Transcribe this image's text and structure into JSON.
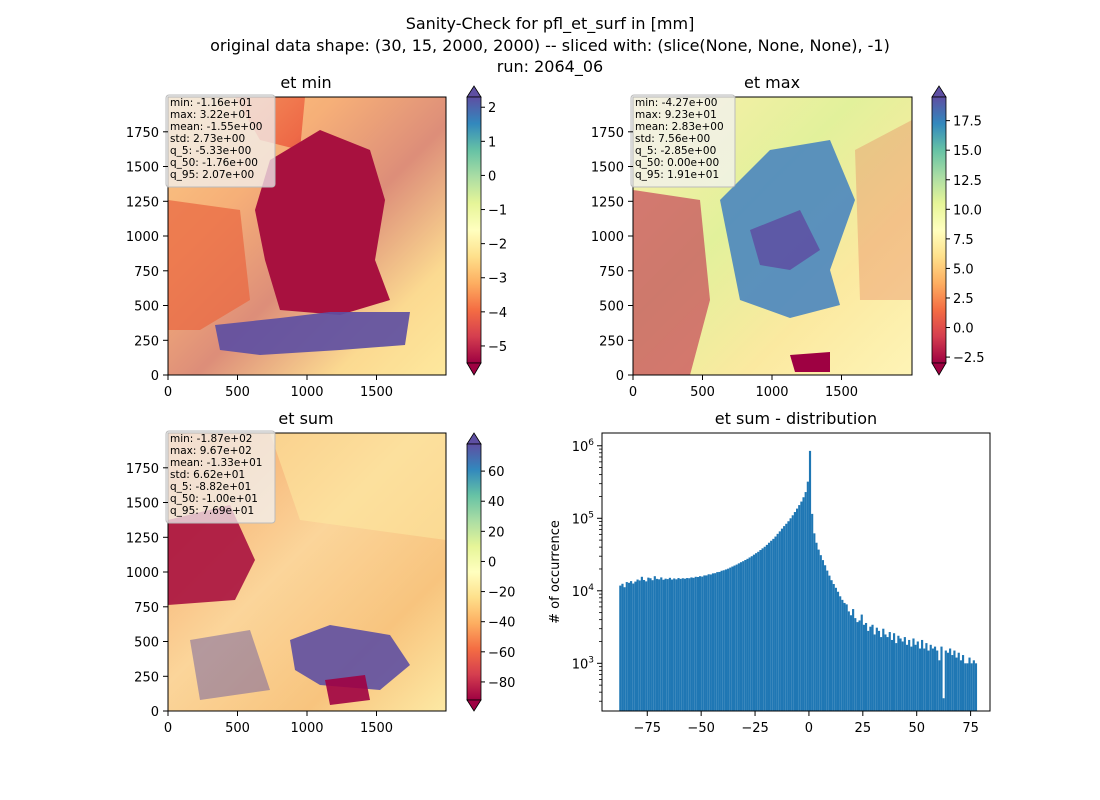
{
  "figure": {
    "title_lines": [
      "Sanity-Check for pfl_et_surf in [mm]",
      "original data shape: (30, 15, 2000, 2000) -- sliced with: (slice(None, None, None), -1)",
      "run: 2064_06"
    ]
  },
  "colors": {
    "spectral": [
      "#9e0142",
      "#d53e4f",
      "#f46d43",
      "#fdae61",
      "#fee08b",
      "#ffffbf",
      "#e6f598",
      "#abdda4",
      "#66c2a5",
      "#3288bd",
      "#5e4fa2"
    ],
    "hist_bar": "#1f77b4"
  },
  "chart_data": [
    {
      "type": "heatmap",
      "title": "et min",
      "x_ticks": [
        "0",
        "500",
        "1000",
        "1500"
      ],
      "y_ticks": [
        "0",
        "250",
        "500",
        "750",
        "1000",
        "1250",
        "1500",
        "1750"
      ],
      "colorbar": {
        "ticks": [
          "2",
          "1",
          "0",
          "−1",
          "−2",
          "−3",
          "−4",
          "−5"
        ],
        "vmin": -5.5,
        "vmax": 2.3,
        "extend": "both"
      },
      "stats": [
        "min: -1.16e+01",
        "max: 3.22e+01",
        "mean: -1.55e+00",
        "std: 2.73e+00",
        "q_5: -5.33e+00",
        "q_50: -1.76e+00",
        "q_95: 2.07e+00"
      ]
    },
    {
      "type": "heatmap",
      "title": "et max",
      "x_ticks": [
        "0",
        "500",
        "1000",
        "1500"
      ],
      "y_ticks": [
        "0",
        "250",
        "500",
        "750",
        "1000",
        "1250",
        "1500",
        "1750"
      ],
      "colorbar": {
        "ticks": [
          "17.5",
          "15.0",
          "12.5",
          "10.0",
          "7.5",
          "5.0",
          "2.5",
          "0.0",
          "−2.5"
        ],
        "vmin": -3.0,
        "vmax": 19.5,
        "extend": "both"
      },
      "stats": [
        "min: -4.27e+00",
        "max: 9.23e+01",
        "mean: 2.83e+00",
        "std: 7.56e+00",
        "q_5: -2.85e+00",
        "q_50: 0.00e+00",
        "q_95: 1.91e+01"
      ]
    },
    {
      "type": "heatmap",
      "title": "et sum",
      "x_ticks": [
        "0",
        "500",
        "1000",
        "1500"
      ],
      "y_ticks": [
        "0",
        "250",
        "500",
        "750",
        "1000",
        "1250",
        "1500",
        "1750"
      ],
      "colorbar": {
        "ticks": [
          "60",
          "40",
          "20",
          "0",
          "−20",
          "−40",
          "−60",
          "−80"
        ],
        "vmin": -92,
        "vmax": 78,
        "extend": "both"
      },
      "stats": [
        "min: -1.87e+02",
        "max: 9.67e+02",
        "mean: -1.33e+01",
        "std: 6.62e+01",
        "q_5: -8.82e+01",
        "q_50: -1.00e+01",
        "q_95: 7.69e+01"
      ]
    },
    {
      "type": "bar",
      "title": "et sum - distribution",
      "ylabel": "# of occurrence",
      "yscale": "log",
      "x_ticks": [
        "−75",
        "−50",
        "−25",
        "0",
        "25",
        "50",
        "75"
      ],
      "y_ticks": [
        "10^3",
        "10^4",
        "10^5",
        "10^6"
      ],
      "xlim": [
        -96,
        84
      ],
      "ylim": [
        220,
        1500000
      ],
      "bin_width": 1,
      "bins": [
        [
          -88,
          11800
        ],
        [
          -87,
          12500
        ],
        [
          -86,
          11200
        ],
        [
          -85,
          13200
        ],
        [
          -84,
          12900
        ],
        [
          -83,
          13600
        ],
        [
          -82,
          12600
        ],
        [
          -81,
          13400
        ],
        [
          -80,
          14300
        ],
        [
          -79,
          13900
        ],
        [
          -78,
          15600
        ],
        [
          -77,
          14100
        ],
        [
          -76,
          13500
        ],
        [
          -75,
          15200
        ],
        [
          -74,
          14900
        ],
        [
          -73,
          14000
        ],
        [
          -72,
          15900
        ],
        [
          -71,
          14600
        ],
        [
          -70,
          14400
        ],
        [
          -69,
          15300
        ],
        [
          -68,
          14200
        ],
        [
          -67,
          14700
        ],
        [
          -66,
          14500
        ],
        [
          -65,
          15100
        ],
        [
          -64,
          14300
        ],
        [
          -63,
          14800
        ],
        [
          -62,
          14400
        ],
        [
          -61,
          15000
        ],
        [
          -60,
          14600
        ],
        [
          -59,
          14900
        ],
        [
          -58,
          14700
        ],
        [
          -57,
          15000
        ],
        [
          -56,
          14900
        ],
        [
          -55,
          15300
        ],
        [
          -54,
          15100
        ],
        [
          -53,
          15600
        ],
        [
          -52,
          15500
        ],
        [
          -51,
          15900
        ],
        [
          -50,
          15700
        ],
        [
          -49,
          16300
        ],
        [
          -48,
          16300
        ],
        [
          -47,
          16900
        ],
        [
          -46,
          16800
        ],
        [
          -45,
          17400
        ],
        [
          -44,
          17500
        ],
        [
          -43,
          18100
        ],
        [
          -42,
          18200
        ],
        [
          -41,
          18900
        ],
        [
          -40,
          19200
        ],
        [
          -39,
          19700
        ],
        [
          -38,
          20200
        ],
        [
          -37,
          20900
        ],
        [
          -36,
          21600
        ],
        [
          -35,
          22300
        ],
        [
          -34,
          23000
        ],
        [
          -33,
          23900
        ],
        [
          -32,
          24800
        ],
        [
          -31,
          25600
        ],
        [
          -30,
          26600
        ],
        [
          -29,
          27600
        ],
        [
          -28,
          28800
        ],
        [
          -27,
          30000
        ],
        [
          -26,
          31500
        ],
        [
          -25,
          33000
        ],
        [
          -24,
          34500
        ],
        [
          -23,
          36500
        ],
        [
          -22,
          38500
        ],
        [
          -21,
          40500
        ],
        [
          -20,
          43000
        ],
        [
          -19,
          46000
        ],
        [
          -18,
          49000
        ],
        [
          -17,
          52000
        ],
        [
          -16,
          56000
        ],
        [
          -15,
          61000
        ],
        [
          -14,
          66000
        ],
        [
          -13,
          72000
        ],
        [
          -12,
          78000
        ],
        [
          -11,
          84000
        ],
        [
          -10,
          91000
        ],
        [
          -9,
          100000
        ],
        [
          -8,
          110000
        ],
        [
          -7,
          122000
        ],
        [
          -6,
          136000
        ],
        [
          -5,
          152000
        ],
        [
          -4,
          170000
        ],
        [
          -3,
          195000
        ],
        [
          -2,
          230000
        ],
        [
          -1,
          320000
        ],
        [
          0,
          850000
        ],
        [
          1,
          115000
        ],
        [
          2,
          62000
        ],
        [
          3,
          46000
        ],
        [
          4,
          37000
        ],
        [
          5,
          31000
        ],
        [
          6,
          26500
        ],
        [
          7,
          22500
        ],
        [
          8,
          19000
        ],
        [
          9,
          16200
        ],
        [
          10,
          14000
        ],
        [
          11,
          12400
        ],
        [
          12,
          11000
        ],
        [
          13,
          9700
        ],
        [
          14,
          8400
        ],
        [
          15,
          7500
        ],
        [
          16,
          6800
        ],
        [
          17,
          6500
        ],
        [
          18,
          5200
        ],
        [
          19,
          4600
        ],
        [
          20,
          5600
        ],
        [
          21,
          4200
        ],
        [
          22,
          3700
        ],
        [
          23,
          3900
        ],
        [
          24,
          4700
        ],
        [
          25,
          3400
        ],
        [
          26,
          3600
        ],
        [
          27,
          2800
        ],
        [
          28,
          3200
        ],
        [
          29,
          3400
        ],
        [
          30,
          2500
        ],
        [
          31,
          3100
        ],
        [
          32,
          2800
        ],
        [
          33,
          2300
        ],
        [
          34,
          3000
        ],
        [
          35,
          2500
        ],
        [
          36,
          2300
        ],
        [
          37,
          2700
        ],
        [
          38,
          2100
        ],
        [
          39,
          2600
        ],
        [
          40,
          1900
        ],
        [
          41,
          2400
        ],
        [
          42,
          2200
        ],
        [
          43,
          2000
        ],
        [
          44,
          2300
        ],
        [
          45,
          1800
        ],
        [
          46,
          2100
        ],
        [
          47,
          1700
        ],
        [
          48,
          2200
        ],
        [
          49,
          1800
        ],
        [
          50,
          2000
        ],
        [
          51,
          1600
        ],
        [
          52,
          2100
        ],
        [
          53,
          1600
        ],
        [
          54,
          1900
        ],
        [
          55,
          1500
        ],
        [
          56,
          1800
        ],
        [
          57,
          1600
        ],
        [
          58,
          1700
        ],
        [
          59,
          1500
        ],
        [
          60,
          1100
        ],
        [
          61,
          1700
        ],
        [
          62,
          330
        ],
        [
          63,
          1500
        ],
        [
          64,
          1400
        ],
        [
          65,
          1600
        ],
        [
          66,
          1300
        ],
        [
          67,
          1500
        ],
        [
          68,
          1200
        ],
        [
          69,
          1400
        ],
        [
          70,
          1100
        ],
        [
          71,
          1300
        ],
        [
          72,
          1000
        ],
        [
          73,
          1000
        ],
        [
          74,
          1200
        ],
        [
          75,
          1000
        ],
        [
          76,
          1100
        ],
        [
          77,
          1000
        ]
      ]
    }
  ]
}
